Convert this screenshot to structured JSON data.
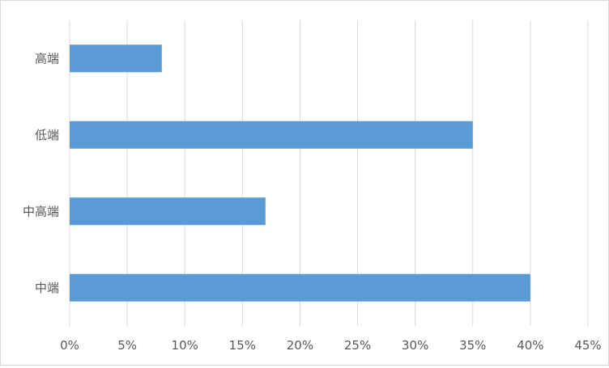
{
  "chart_data": {
    "type": "bar",
    "orientation": "horizontal",
    "title": "",
    "xlabel": "",
    "ylabel": "",
    "categories": [
      "中端",
      "中高端",
      "低端",
      "高端"
    ],
    "values": [
      0.4,
      0.17,
      0.35,
      0.08
    ],
    "xlim": [
      0,
      0.45
    ],
    "xticks": [
      0,
      0.05,
      0.1,
      0.15,
      0.2,
      0.25,
      0.3,
      0.35,
      0.4,
      0.45
    ],
    "xtick_labels": [
      "0%",
      "5%",
      "10%",
      "15%",
      "20%",
      "25%",
      "30%",
      "35%",
      "40%",
      "45%"
    ],
    "grid": "vertical",
    "legend": "none",
    "bar_color": "#5b9bd5",
    "grid_color": "#d9d9d9"
  }
}
